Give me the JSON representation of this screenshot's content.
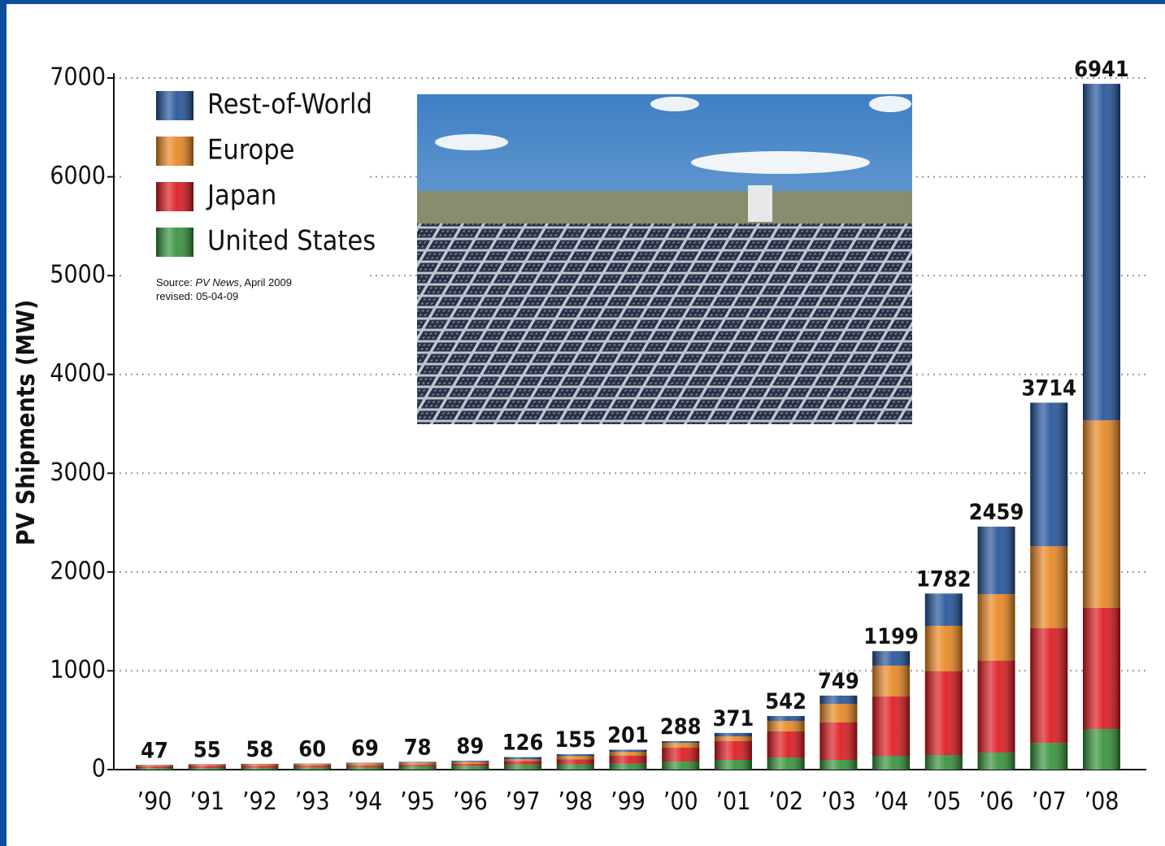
{
  "chart_data": {
    "type": "stacked-bar",
    "y_label": "PV Shipments (MW)",
    "source_prefix": "Source: ",
    "source_title": "PV News",
    "source_suffix": ", April 2009",
    "revised": "revised: 05-04-09",
    "categories": [
      "’90",
      "’91",
      "’92",
      "’93",
      "’94",
      "’95",
      "’96",
      "’97",
      "’98",
      "’99",
      "’00",
      "’01",
      "’02",
      "’03",
      "’04",
      "’05",
      "’06",
      "’07",
      "’08"
    ],
    "totals": [
      47,
      55,
      58,
      60,
      69,
      78,
      89,
      126,
      155,
      201,
      288,
      371,
      542,
      749,
      1199,
      1782,
      2459,
      3714,
      6941
    ],
    "series": [
      {
        "name": "United States",
        "color": "#2f8f35",
        "values": [
          15,
          17,
          18,
          23,
          26,
          35,
          39,
          51,
          54,
          60,
          82,
          99,
          123,
          99,
          140,
          148,
          173,
          271,
          411
        ]
      },
      {
        "name": "Japan",
        "color": "#dc1218",
        "values": [
          17,
          20,
          19,
          17,
          17,
          16,
          21,
          35,
          49,
          80,
          140,
          189,
          264,
          378,
          600,
          847,
          929,
          1160,
          1226
        ]
      },
      {
        "name": "Europe",
        "color": "#e8831c",
        "values": [
          10,
          14,
          17,
          17,
          22,
          20,
          19,
          19,
          34,
          40,
          49,
          49,
          106,
          189,
          313,
          461,
          674,
          830,
          1899
        ]
      },
      {
        "name": "Rest-of-World",
        "color": "#1d4f97",
        "values": [
          5,
          4,
          4,
          3,
          4,
          7,
          10,
          21,
          18,
          21,
          17,
          34,
          49,
          83,
          146,
          326,
          683,
          1453,
          3405
        ]
      }
    ],
    "ylim": [
      0,
      7000
    ],
    "yticks": [
      0,
      1000,
      2000,
      3000,
      4000,
      5000,
      6000,
      7000
    ],
    "grid": true
  }
}
